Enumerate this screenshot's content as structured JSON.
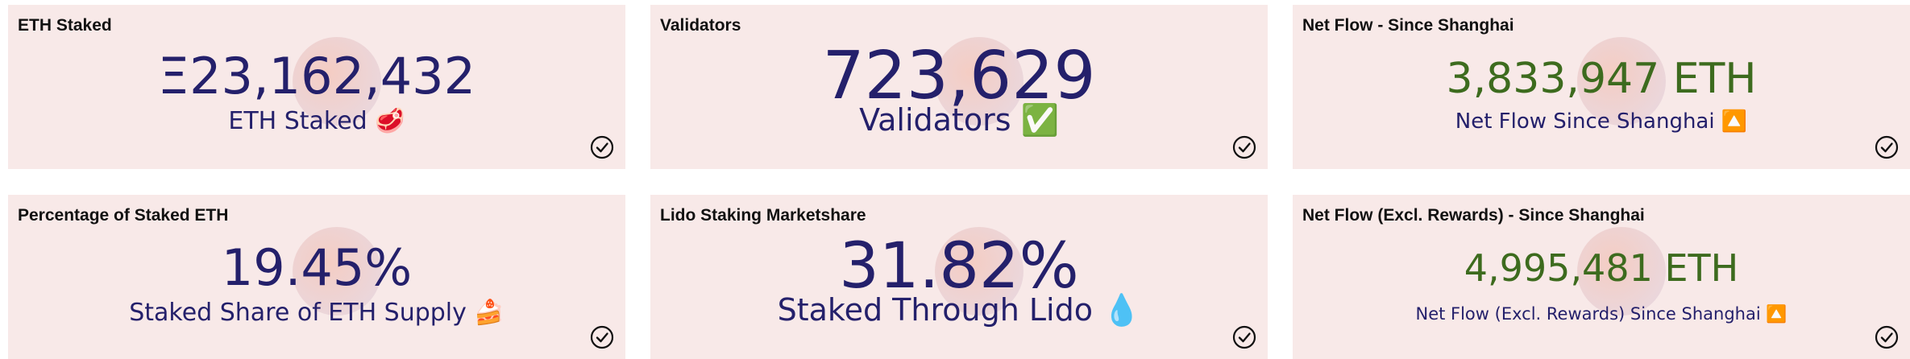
{
  "cards": [
    {
      "title": "ETH Staked",
      "value": "Ξ23,162,432",
      "subtitle": "ETH Staked 🥩"
    },
    {
      "title": "Validators",
      "value": "723,629",
      "subtitle": "Validators ✅"
    },
    {
      "title": "Net Flow - Since Shanghai",
      "value": "3,833,947 ETH",
      "subtitle": "Net Flow Since Shanghai 🔼"
    },
    {
      "title": "Percentage of Staked ETH",
      "value": "19.45%",
      "subtitle": "Staked Share of ETH Supply 🍰"
    },
    {
      "title": "Lido Staking Marketshare",
      "value": "31.82%",
      "subtitle": "Staked Through Lido 💧"
    },
    {
      "title": "Net Flow (Excl. Rewards) - Since Shanghai",
      "value": "4,995,481 ETH",
      "subtitle": "Net Flow (Excl. Rewards) Since Shanghai 🔼"
    }
  ]
}
